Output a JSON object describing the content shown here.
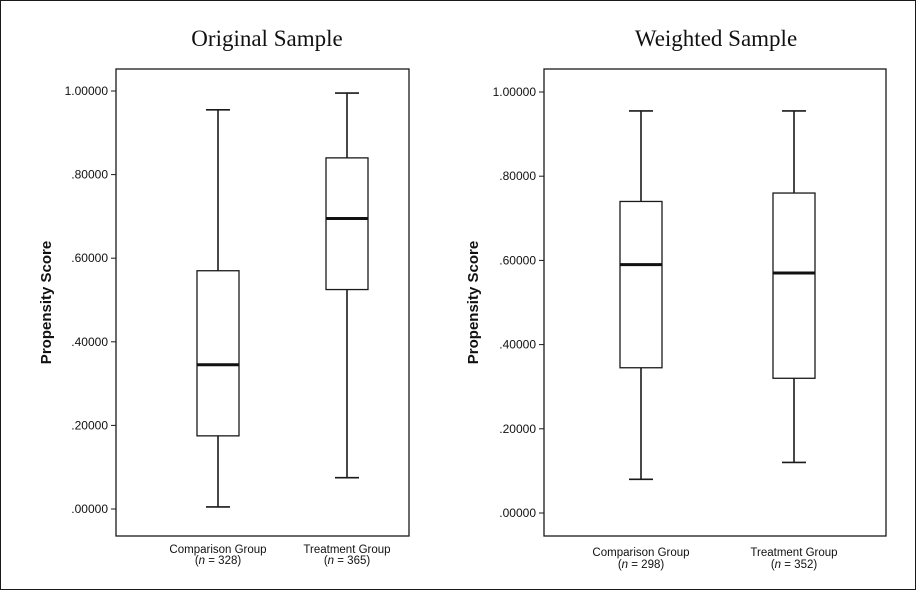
{
  "chart_data": [
    {
      "type": "box",
      "title": "Original Sample",
      "ylabel": "Propensity Score",
      "ylim": [
        0,
        1
      ],
      "yticks": [
        ".00000",
        ".20000",
        ".40000",
        ".60000",
        ".80000",
        "1.00000"
      ],
      "grid": false,
      "categories": [
        {
          "name": "Comparison Group",
          "n_label": "(n = 328)",
          "n_prefix": "(",
          "n_var": "n",
          "n_rest": " = 328)",
          "min": 0.005,
          "q1": 0.175,
          "median": 0.345,
          "q3": 0.57,
          "max": 0.955
        },
        {
          "name": "Treatment Group",
          "n_label": "(n = 365)",
          "n_prefix": "(",
          "n_var": "n",
          "n_rest": " = 365)",
          "min": 0.075,
          "q1": 0.525,
          "median": 0.695,
          "q3": 0.84,
          "max": 0.995
        }
      ]
    },
    {
      "type": "box",
      "title": "Weighted Sample",
      "ylabel": "Propensity Score",
      "ylim": [
        0,
        1
      ],
      "yticks": [
        ".00000",
        ".20000",
        ".40000",
        ".60000",
        ".80000",
        "1.00000"
      ],
      "grid": false,
      "categories": [
        {
          "name": "Comparison Group",
          "n_label": "(n = 298)",
          "n_prefix": "(",
          "n_var": "n",
          "n_rest": " = 298)",
          "min": 0.08,
          "q1": 0.345,
          "median": 0.59,
          "q3": 0.74,
          "max": 0.955
        },
        {
          "name": "Treatment Group",
          "n_label": "(n = 352)",
          "n_prefix": "(",
          "n_var": "n",
          "n_rest": " = 352)",
          "min": 0.12,
          "q1": 0.32,
          "median": 0.57,
          "q3": 0.76,
          "max": 0.955
        }
      ]
    }
  ]
}
